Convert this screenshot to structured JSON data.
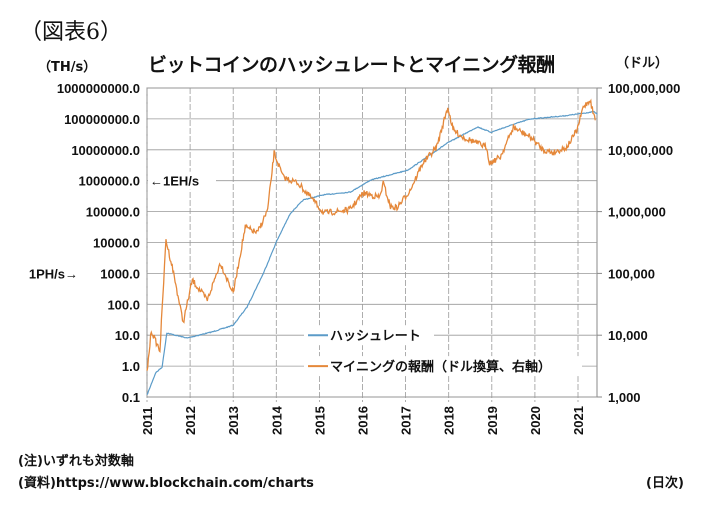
{
  "figure_label": "（図表6）",
  "chart_data": {
    "type": "line",
    "title": "ビットコインのハッシュレートとマイニング報酬",
    "y_left_unit": "（TH/s）",
    "y_right_unit": "（ドル）",
    "y_left_scale": "log",
    "y_right_scale": "log",
    "y_left_lim": [
      0.1,
      1000000000
    ],
    "y_right_lim": [
      1000,
      100000000
    ],
    "x_lim": [
      2011.0,
      2021.45
    ],
    "grid": true,
    "legend_placement": "bottom-right",
    "y_left_ticks": [
      "0.1",
      "1.0",
      "10.0",
      "100.0",
      "1000.0",
      "10000.0",
      "100000.0",
      "1000000.0",
      "10000000.0",
      "100000000.0",
      "1000000000.0"
    ],
    "y_right_ticks": [
      "1,000",
      "10,000",
      "100,000",
      "1,000,000",
      "10,000,000",
      "100,000,000"
    ],
    "x_ticks": [
      "2011",
      "2012",
      "2013",
      "2014",
      "2015",
      "2016",
      "2017",
      "2018",
      "2019",
      "2020",
      "2021"
    ],
    "annotations": {
      "eh": "←1EH/s",
      "ph": "1PH/s→"
    },
    "series": [
      {
        "name": "ハッシュレート",
        "axis": "left",
        "color": "#5b9bc8",
        "x": [
          2011.0,
          2011.2,
          2011.35,
          2011.46,
          2011.93,
          2012.53,
          2013.0,
          2013.32,
          2013.7,
          2014.02,
          2014.33,
          2014.63,
          2015.1,
          2015.72,
          2016.19,
          2017.05,
          2017.4,
          2017.97,
          2018.67,
          2018.98,
          2019.6,
          2019.9,
          2020.67,
          2021.37,
          2021.45
        ],
        "y": [
          0.115,
          0.6,
          0.93,
          11.7,
          8.1,
          13,
          21,
          81,
          1000,
          12000,
          89000,
          240000,
          350000,
          430000,
          1050000,
          2200000,
          4700000,
          16600000,
          55000000,
          37000000,
          74000000,
          100000000,
          125000000,
          170000000,
          140000000
        ]
      },
      {
        "name": "マイニングの報酬（ドル換算、右軸）",
        "axis": "right",
        "color": "#e5883a",
        "x": [
          2011.0,
          2011.1,
          2011.2,
          2011.3,
          2011.44,
          2011.6,
          2011.84,
          2012.05,
          2012.4,
          2012.7,
          2013.0,
          2013.28,
          2013.56,
          2013.8,
          2013.95,
          2014.16,
          2014.5,
          2014.8,
          2015.1,
          2015.4,
          2015.7,
          2016.02,
          2016.4,
          2016.48,
          2016.65,
          2016.8,
          2017.1,
          2017.4,
          2017.72,
          2017.98,
          2018.1,
          2018.33,
          2018.65,
          2018.88,
          2018.95,
          2019.2,
          2019.5,
          2019.9,
          2020.19,
          2020.42,
          2020.74,
          2020.98,
          2021.12,
          2021.28,
          2021.4
        ],
        "y": [
          2450,
          12000,
          8000,
          5700,
          350000,
          115000,
          16000,
          78000,
          37000,
          148000,
          48000,
          560000,
          450000,
          1070000,
          8900000,
          3600000,
          2900000,
          1700000,
          950000,
          1000000,
          1070000,
          2000000,
          1700000,
          2900000,
          1200000,
          1150000,
          2200000,
          6100000,
          11000000,
          49000000,
          21000000,
          16000000,
          13000000,
          11000000,
          6100000,
          7700000,
          23000000,
          16000000,
          10000000,
          9000000,
          11000000,
          21000000,
          49000000,
          64000000,
          30000000
        ]
      }
    ]
  },
  "notes": {
    "note": "(注)いずれも対数軸",
    "source": "(資料)https://www.blockchain.com/charts",
    "frequency": "(日次)"
  }
}
